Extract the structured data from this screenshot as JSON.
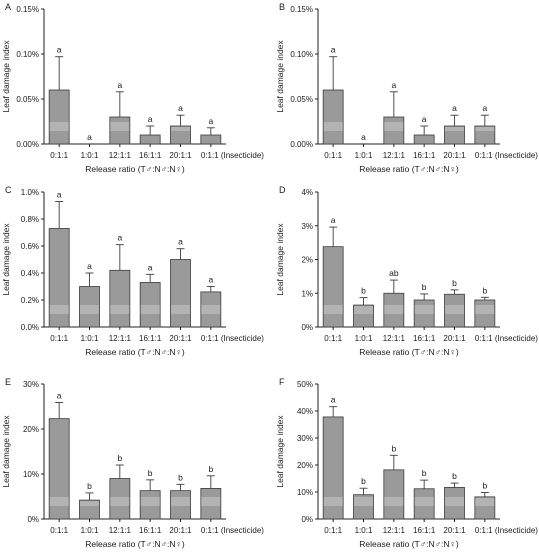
{
  "chart_data": [
    {
      "type": "bar",
      "panel": "A",
      "ylabel": "Leaf damage index",
      "xlabel": "Release ratio (T♂:N♂:N♀)",
      "categories": [
        "0:1:1",
        "1:0:1",
        "12:1:1",
        "16:1:1",
        "20:1:1",
        "0:1:1 (Insecticide)"
      ],
      "values": [
        0.06,
        0.0,
        0.03,
        0.01,
        0.02,
        0.01
      ],
      "errors": [
        0.037,
        0.0,
        0.028,
        0.01,
        0.012,
        0.008
      ],
      "letters": [
        "a",
        "a",
        "a",
        "a",
        "a",
        "a"
      ],
      "ylim": [
        0,
        0.15
      ],
      "yticks": [
        0,
        0.05,
        0.1,
        0.15
      ],
      "ytick_labels": [
        "0.00%",
        "0.05%",
        "0.10%",
        "0.15%"
      ]
    },
    {
      "type": "bar",
      "panel": "B",
      "ylabel": "Leaf damage index",
      "xlabel": "Release ratio (T♂:N♂:N♀)",
      "categories": [
        "0:1:1",
        "1:0:1",
        "12:1:1",
        "16:1:1",
        "20:1:1",
        "0:1:1 (Insecticide)"
      ],
      "values": [
        0.06,
        0.0,
        0.03,
        0.01,
        0.02,
        0.02
      ],
      "errors": [
        0.037,
        0.0,
        0.028,
        0.01,
        0.012,
        0.012
      ],
      "letters": [
        "a",
        "a",
        "a",
        "a",
        "a",
        "a"
      ],
      "ylim": [
        0,
        0.15
      ],
      "yticks": [
        0,
        0.05,
        0.1,
        0.15
      ],
      "ytick_labels": [
        "0.00%",
        "0.05%",
        "0.10%",
        "0.15%"
      ]
    },
    {
      "type": "bar",
      "panel": "C",
      "ylabel": "Leaf damage index",
      "xlabel": "Release ratio (T♂:N♂:N♀)",
      "categories": [
        "0:1:1",
        "1:0:1",
        "12:1:1",
        "16:1:1",
        "20:1:1",
        "0:1:1 (Insecticide)"
      ],
      "values": [
        0.73,
        0.3,
        0.42,
        0.33,
        0.5,
        0.26
      ],
      "errors": [
        0.2,
        0.1,
        0.19,
        0.06,
        0.08,
        0.04
      ],
      "letters": [
        "a",
        "a",
        "a",
        "a",
        "a",
        "a"
      ],
      "ylim": [
        0,
        1.0
      ],
      "yticks": [
        0,
        0.2,
        0.4,
        0.6,
        0.8,
        1.0
      ],
      "ytick_labels": [
        "0.0%",
        "0.2%",
        "0.4%",
        "0.6%",
        "0.8%",
        "1.0%"
      ]
    },
    {
      "type": "bar",
      "panel": "D",
      "ylabel": "Leaf damage index",
      "xlabel": "Release ratio (T♂:N♂:N♀)",
      "categories": [
        "0:1:1",
        "1:0:1",
        "12:1:1",
        "16:1:1",
        "20:1:1",
        "0:1:1 (Insecticide)"
      ],
      "values": [
        2.38,
        0.65,
        1.0,
        0.8,
        0.97,
        0.8
      ],
      "errors": [
        0.58,
        0.22,
        0.39,
        0.18,
        0.13,
        0.08
      ],
      "letters": [
        "a",
        "b",
        "ab",
        "b",
        "b",
        "b"
      ],
      "ylim": [
        0,
        4
      ],
      "yticks": [
        0,
        1,
        2,
        3,
        4
      ],
      "ytick_labels": [
        "0%",
        "1%",
        "2%",
        "3%",
        "4%"
      ]
    },
    {
      "type": "bar",
      "panel": "E",
      "ylabel": "Leaf damage index",
      "xlabel": "Release ratio (T♂:N♂:N♀)",
      "categories": [
        "0:1:1",
        "1:0:1",
        "12:1:1",
        "16:1:1",
        "20:1:1",
        "0:1:1 (Insecticide)"
      ],
      "values": [
        22.3,
        4.2,
        9.0,
        6.3,
        6.3,
        6.8
      ],
      "errors": [
        3.6,
        1.6,
        3.0,
        2.4,
        1.4,
        2.8
      ],
      "letters": [
        "a",
        "b",
        "b",
        "b",
        "b",
        "b"
      ],
      "ylim": [
        0,
        30
      ],
      "yticks": [
        0,
        10,
        20,
        30
      ],
      "ytick_labels": [
        "0%",
        "10%",
        "20%",
        "30%"
      ]
    },
    {
      "type": "bar",
      "panel": "F",
      "ylabel": "Leaf damage index",
      "xlabel": "Release ratio (T♂:N♂:N♀)",
      "categories": [
        "0:1:1",
        "1:0:1",
        "12:1:1",
        "16:1:1",
        "20:1:1",
        "0:1:1 (Insecticide)"
      ],
      "values": [
        37.8,
        9.0,
        18.2,
        11.2,
        11.7,
        8.2
      ],
      "errors": [
        3.8,
        2.4,
        5.4,
        3.2,
        1.6,
        1.6
      ],
      "letters": [
        "a",
        "b",
        "b",
        "b",
        "b",
        "b"
      ],
      "ylim": [
        0,
        50
      ],
      "yticks": [
        0,
        10,
        20,
        30,
        40,
        50
      ],
      "ytick_labels": [
        "0%",
        "10%",
        "20%",
        "30%",
        "40%",
        "50%"
      ]
    }
  ],
  "colors": {
    "bar_fill": "#9a9a9a",
    "bar_band": "#b3b3b3",
    "bar_stroke": "#3c3c3c",
    "axis": "#222222",
    "text": "#1a1a1a"
  }
}
